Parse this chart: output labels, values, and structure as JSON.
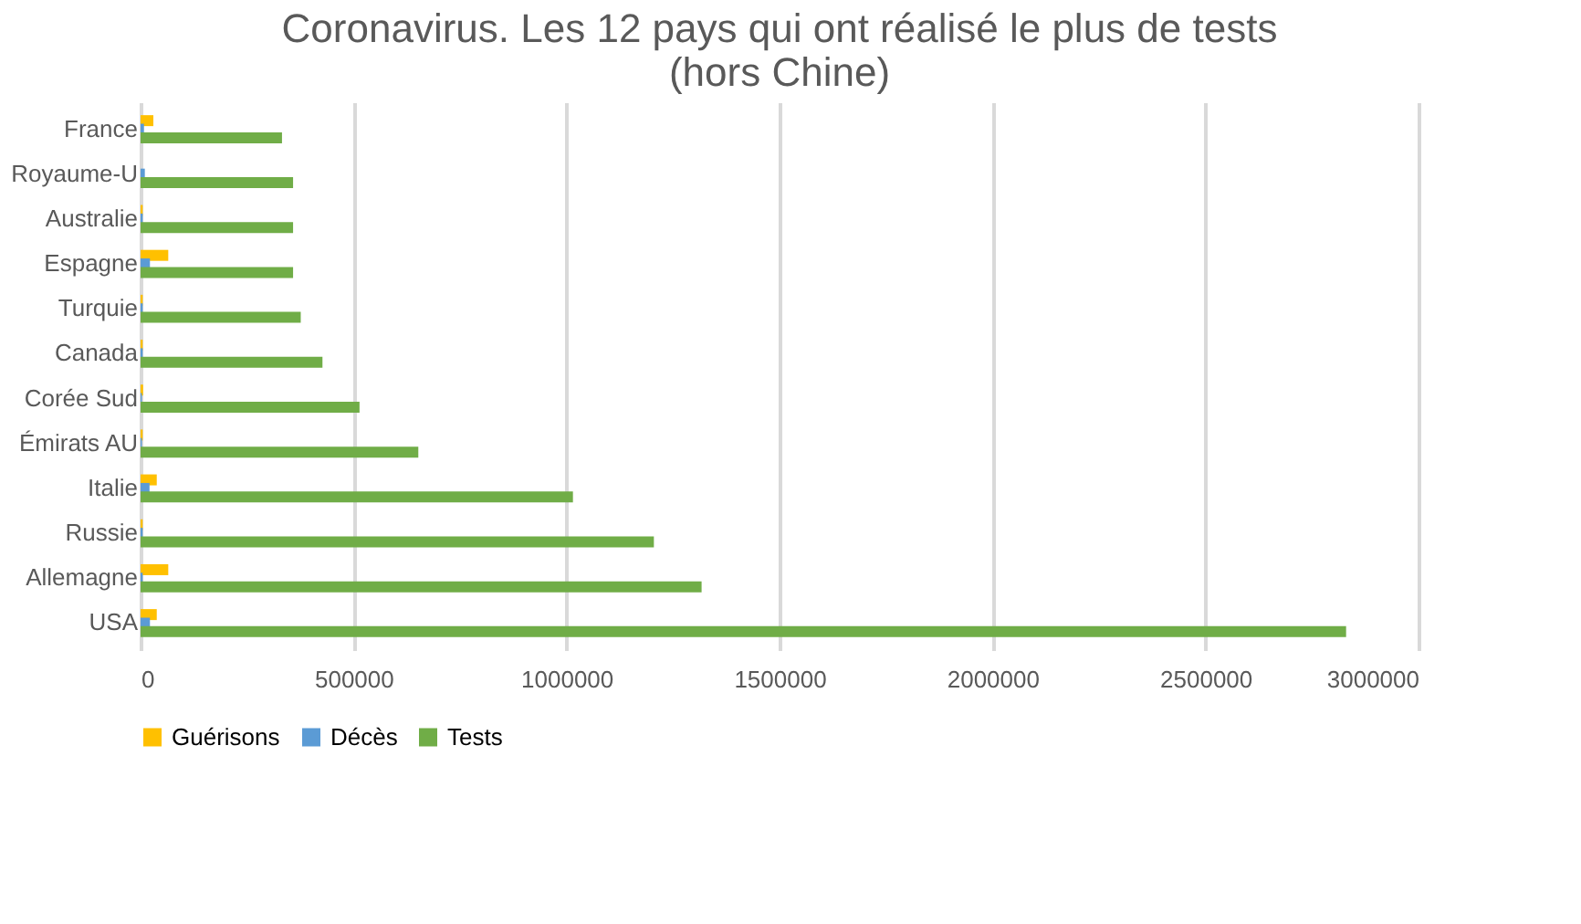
{
  "chart_data": {
    "type": "bar",
    "orientation": "horizontal",
    "title": [
      "Coronavirus. Les 12 pays qui ont réalisé le plus de tests",
      "(hors Chine)"
    ],
    "categories": [
      "France",
      "Royaume-U",
      "Australie",
      "Espagne",
      "Turquie",
      "Canada",
      "Corée Sud",
      "Émirats AU",
      "Italie",
      "Russie",
      "Allemagne",
      "USA"
    ],
    "series": [
      {
        "name": "Guérisons",
        "color": "#ffc000",
        "values": [
          30000,
          null,
          5000,
          65000,
          5000,
          5000,
          6000,
          5000,
          38000,
          5000,
          65000,
          38000
        ]
      },
      {
        "name": "Décès",
        "color": "#5b9bd5",
        "values": [
          8000,
          10000,
          5000,
          22000,
          5000,
          5000,
          3000,
          3000,
          21000,
          5000,
          5000,
          22000
        ]
      },
      {
        "name": "Tests",
        "color": "#70ad47",
        "values": [
          332000,
          358000,
          358000,
          358000,
          376000,
          427000,
          514000,
          652000,
          1015000,
          1205000,
          1317000,
          2830000
        ]
      }
    ],
    "xlim": [
      0,
      3000000
    ],
    "xticks": [
      0,
      500000,
      1000000,
      1500000,
      2000000,
      2500000,
      3000000
    ],
    "grid": "x",
    "legend": "bottom"
  }
}
